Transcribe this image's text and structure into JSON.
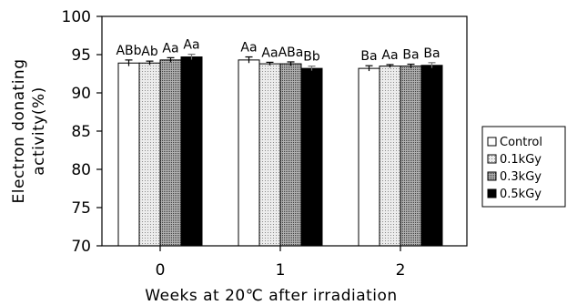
{
  "chart_data": {
    "type": "bar",
    "xlabel": "Weeks at 20℃  after irradiation",
    "ylabel": "Electron donating activity(%)",
    "ylim": [
      70,
      100
    ],
    "yticks": [
      70,
      75,
      80,
      85,
      90,
      95,
      100
    ],
    "categories": [
      "0",
      "1",
      "2"
    ],
    "grid": false,
    "legend_position": "right",
    "series": [
      {
        "name": "Control",
        "fill": "#ffffff",
        "values": [
          93.9,
          94.3,
          93.2
        ],
        "errors": [
          0.4,
          0.4,
          0.35
        ],
        "labels": [
          "ABb",
          "Aa",
          "Ba"
        ]
      },
      {
        "name": "0.1kGy",
        "fill": "#dcdcdc",
        "values": [
          93.9,
          93.8,
          93.5
        ],
        "errors": [
          0.25,
          0.2,
          0.2
        ],
        "labels": [
          "Ab",
          "Aa",
          "Aa"
        ]
      },
      {
        "name": "0.3kGy",
        "fill": "#8f8f8f",
        "values": [
          94.3,
          93.8,
          93.5
        ],
        "errors": [
          0.3,
          0.25,
          0.25
        ],
        "labels": [
          "Aa",
          "ABa",
          "Ba"
        ]
      },
      {
        "name": "0.5kGy",
        "fill": "#000000",
        "values": [
          94.7,
          93.2,
          93.6
        ],
        "errors": [
          0.35,
          0.3,
          0.35
        ],
        "labels": [
          "Aa",
          "Bb",
          "Ba"
        ]
      }
    ]
  }
}
